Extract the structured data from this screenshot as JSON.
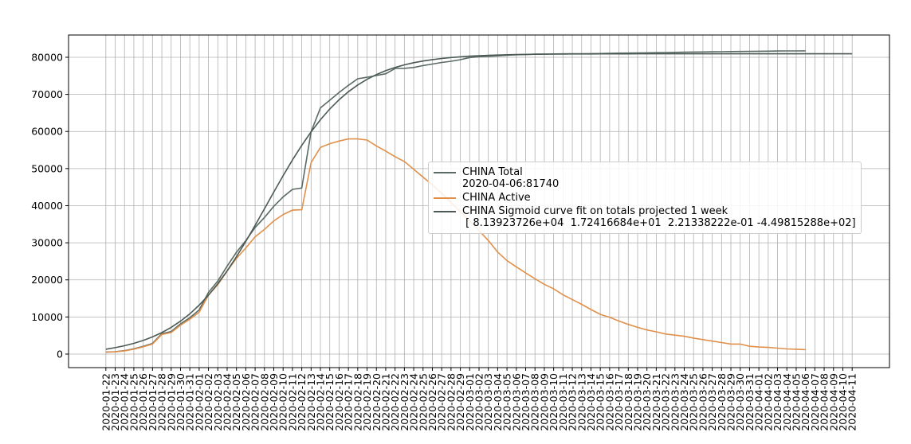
{
  "chart_data": {
    "type": "line",
    "categories": [
      "2020-01-22",
      "2020-01-23",
      "2020-01-24",
      "2020-01-25",
      "2020-01-26",
      "2020-01-27",
      "2020-01-28",
      "2020-01-29",
      "2020-01-30",
      "2020-01-31",
      "2020-02-01",
      "2020-02-02",
      "2020-02-03",
      "2020-02-04",
      "2020-02-05",
      "2020-02-06",
      "2020-02-07",
      "2020-02-08",
      "2020-02-09",
      "2020-02-10",
      "2020-02-11",
      "2020-02-12",
      "2020-02-13",
      "2020-02-14",
      "2020-02-15",
      "2020-02-16",
      "2020-02-17",
      "2020-02-18",
      "2020-02-19",
      "2020-02-20",
      "2020-02-21",
      "2020-02-22",
      "2020-02-23",
      "2020-02-24",
      "2020-02-25",
      "2020-02-26",
      "2020-02-27",
      "2020-02-28",
      "2020-02-29",
      "2020-03-01",
      "2020-03-02",
      "2020-03-03",
      "2020-03-04",
      "2020-03-05",
      "2020-03-06",
      "2020-03-07",
      "2020-03-08",
      "2020-03-09",
      "2020-03-10",
      "2020-03-11",
      "2020-03-12",
      "2020-03-13",
      "2020-03-14",
      "2020-03-15",
      "2020-03-16",
      "2020-03-17",
      "2020-03-18",
      "2020-03-19",
      "2020-03-20",
      "2020-03-21",
      "2020-03-22",
      "2020-03-23",
      "2020-03-24",
      "2020-03-25",
      "2020-03-26",
      "2020-03-27",
      "2020-03-28",
      "2020-03-29",
      "2020-03-30",
      "2020-03-31",
      "2020-04-01",
      "2020-04-02",
      "2020-04-03",
      "2020-04-04",
      "2020-04-05",
      "2020-04-06",
      "2020-04-07",
      "2020-04-08",
      "2020-04-09",
      "2020-04-10",
      "2020-04-11"
    ],
    "series": [
      {
        "name": "CHINA Total\n2020-04-06:81740",
        "color": "#5b6b63",
        "values": [
          548,
          643,
          920,
          1406,
          2075,
          2877,
          5509,
          6087,
          8141,
          9802,
          11891,
          16630,
          19716,
          23707,
          27440,
          30587,
          34110,
          36814,
          39829,
          42354,
          44386,
          44759,
          59895,
          66358,
          68413,
          70513,
          72434,
          74211,
          74619,
          75077,
          75550,
          77001,
          77022,
          77241,
          77754,
          78166,
          78600,
          78928,
          79356,
          79932,
          80136,
          80261,
          80386,
          80537,
          80690,
          80770,
          80823,
          80860,
          80887,
          80921,
          80932,
          80945,
          80977,
          81003,
          81070,
          81100,
          81130,
          81160,
          81200,
          81240,
          81280,
          81320,
          81360,
          81400,
          81430,
          81470,
          81500,
          81530,
          81560,
          81590,
          81620,
          81650,
          81680,
          81700,
          81720,
          81740,
          null,
          null,
          null,
          null,
          null
        ]
      },
      {
        "name": "CHINA Active",
        "color": "#e0904a",
        "values": [
          510,
          600,
          870,
          1300,
          1950,
          2700,
          5300,
          5800,
          7800,
          9400,
          11300,
          15900,
          18700,
          22400,
          25800,
          28600,
          31600,
          33600,
          35900,
          37600,
          38800,
          38900,
          51600,
          55700,
          56700,
          57400,
          58000,
          58000,
          57700,
          56100,
          54700,
          53200,
          51900,
          49800,
          47700,
          45600,
          43300,
          40900,
          38300,
          35800,
          33300,
          30600,
          27500,
          25200,
          23500,
          21900,
          20300,
          18800,
          17600,
          16000,
          14700,
          13400,
          12000,
          10700,
          9900,
          8900,
          8000,
          7200,
          6500,
          6000,
          5400,
          5100,
          4800,
          4300,
          3900,
          3500,
          3100,
          2700,
          2700,
          2100,
          1900,
          1800,
          1600,
          1400,
          1300,
          1200,
          null,
          null,
          null,
          null,
          null
        ]
      },
      {
        "name": "CHINA Sigmoid curve fit on totals projected 1 week\n [ 8.13923726e+04  1.72416684e+01  2.21338222e-01 -4.49815288e+02]",
        "color": "#4b5a55",
        "values": [
          1303,
          1725,
          2247,
          2887,
          3673,
          4631,
          5792,
          7193,
          8870,
          10858,
          13191,
          15891,
          18975,
          22432,
          26245,
          30357,
          34694,
          39159,
          43656,
          48067,
          52299,
          56261,
          59895,
          63163,
          66047,
          68550,
          70703,
          72528,
          74058,
          75330,
          76381,
          77246,
          77953,
          78528,
          78997,
          79375,
          79682,
          79928,
          80128,
          80288,
          80417,
          80521,
          80604,
          80671,
          80725,
          80768,
          80802,
          80830,
          80853,
          80870,
          80885,
          80896,
          80905,
          80912,
          80918,
          80923,
          80927,
          80930,
          80932,
          80934,
          80936,
          80937,
          80938,
          80939,
          80940,
          80940,
          80941,
          80941,
          80941,
          80941,
          80941,
          80942,
          80942,
          80942,
          80942,
          80942,
          80942,
          80942,
          80942,
          80942,
          80942
        ]
      }
    ],
    "ylim": [
      -3650,
      86000
    ],
    "yticks": [
      0,
      10000,
      20000,
      30000,
      40000,
      50000,
      60000,
      70000,
      80000
    ],
    "grid": true,
    "legend": "right"
  }
}
